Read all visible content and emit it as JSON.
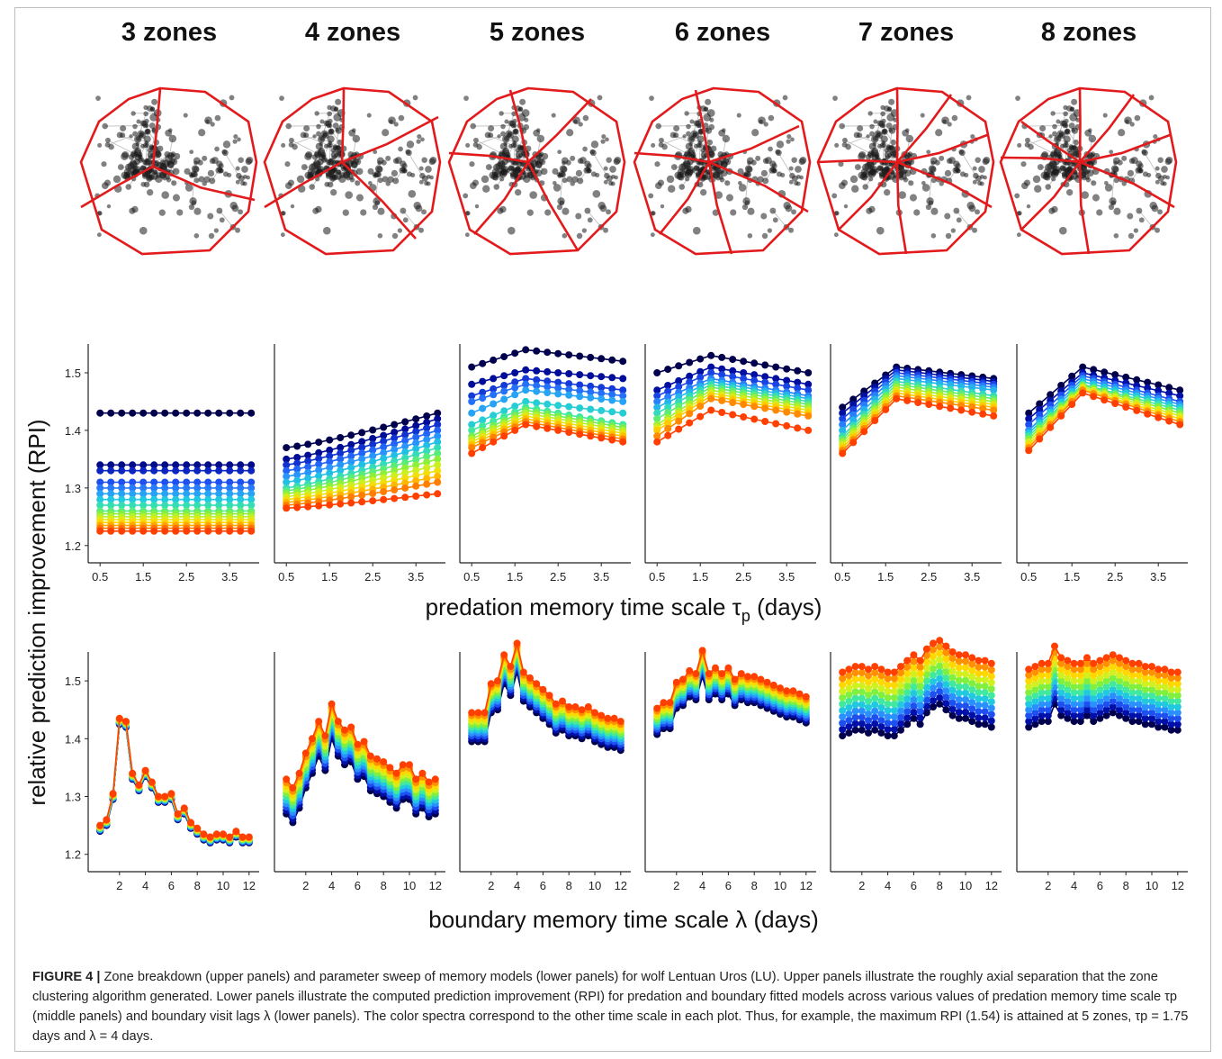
{
  "zone_titles": [
    "3 zones",
    "4 zones",
    "5 zones",
    "6 zones",
    "7 zones",
    "8 zones"
  ],
  "y_axis_label": "relative prediction improvement (RPI)",
  "middle_xlabel": "predation memory time scale τ",
  "middle_xlabel_sub": "p",
  "middle_xlabel_suffix": " (days)",
  "bottom_xlabel": "boundary memory time scale λ (days)",
  "caption": {
    "label": "FIGURE 4 |",
    "text": " Zone breakdown (upper panels) and parameter sweep of memory models (lower panels) for wolf Lentuan Uros (LU). Upper panels illustrate the roughly axial separation that the zone clustering algorithm generated. Lower panels illustrate the computed prediction improvement (RPI) for predation and boundary fitted models across various values of predation memory time scale τp (middle panels) and boundary visit lags λ (lower panels). The color spectra correspond to the other time scale in each plot. Thus, for example, the maximum RPI (1.54) is attained at 5 zones, τp = 1.75 days and λ = 4 days."
  },
  "colors": {
    "zone_boundary": "#e31a1c",
    "points": "#1a1a1a",
    "spectrum": [
      "#00004d",
      "#0010a8",
      "#1e50f0",
      "#2b90ff",
      "#20c8e0",
      "#40e8a0",
      "#80f040",
      "#d0f020",
      "#ffd800",
      "#ff9000",
      "#ff4000"
    ]
  },
  "chart_data": [
    {
      "type": "line",
      "panel": "middle",
      "zones": 3,
      "x": [
        0.5,
        0.75,
        1.0,
        1.25,
        1.5,
        1.75,
        2.0,
        2.25,
        2.5,
        2.75,
        3.0,
        3.25,
        3.5,
        3.75,
        4.0
      ],
      "xticks": [
        0.5,
        1.5,
        2.5,
        3.5
      ],
      "ylim": [
        1.17,
        1.55
      ],
      "yticks": [
        1.2,
        1.3,
        1.4,
        1.5
      ],
      "series_levels": [
        1.43,
        1.34,
        1.33,
        1.31,
        1.3,
        1.29,
        1.28,
        1.27,
        1.26,
        1.255,
        1.25,
        1.245,
        1.24,
        1.235,
        1.23,
        1.225
      ],
      "shape": "flat"
    },
    {
      "type": "line",
      "panel": "middle",
      "zones": 4,
      "x": [
        0.5,
        0.75,
        1.0,
        1.25,
        1.5,
        1.75,
        2.0,
        2.25,
        2.5,
        2.75,
        3.0,
        3.25,
        3.5,
        3.75,
        4.0
      ],
      "xticks": [
        0.5,
        1.5,
        2.5,
        3.5
      ],
      "ylim": [
        1.17,
        1.55
      ],
      "series_start": [
        1.37,
        1.35,
        1.34,
        1.33,
        1.32,
        1.31,
        1.3,
        1.295,
        1.29,
        1.285,
        1.28,
        1.275,
        1.27,
        1.265
      ],
      "series_end": [
        1.43,
        1.42,
        1.41,
        1.4,
        1.39,
        1.38,
        1.37,
        1.36,
        1.35,
        1.34,
        1.33,
        1.32,
        1.31,
        1.29
      ],
      "shape": "rising"
    },
    {
      "type": "line",
      "panel": "middle",
      "zones": 5,
      "x": [
        0.5,
        0.75,
        1.0,
        1.25,
        1.5,
        1.75,
        2.0,
        2.25,
        2.5,
        2.75,
        3.0,
        3.25,
        3.5,
        3.75,
        4.0
      ],
      "xticks": [
        0.5,
        1.5,
        2.5,
        3.5
      ],
      "ylim": [
        1.17,
        1.55
      ],
      "series_start": [
        1.51,
        1.48,
        1.46,
        1.45,
        1.43,
        1.41,
        1.4,
        1.39,
        1.385,
        1.38,
        1.375,
        1.37,
        1.36
      ],
      "series_peak": [
        1.54,
        1.505,
        1.49,
        1.48,
        1.47,
        1.45,
        1.44,
        1.435,
        1.43,
        1.425,
        1.42,
        1.415,
        1.41
      ],
      "series_end": [
        1.52,
        1.49,
        1.47,
        1.46,
        1.45,
        1.43,
        1.41,
        1.405,
        1.4,
        1.395,
        1.39,
        1.385,
        1.38
      ],
      "shape": "hump"
    },
    {
      "type": "line",
      "panel": "middle",
      "zones": 6,
      "x": [
        0.5,
        0.75,
        1.0,
        1.25,
        1.5,
        1.75,
        2.0,
        2.25,
        2.5,
        2.75,
        3.0,
        3.25,
        3.5,
        3.75,
        4.0
      ],
      "xticks": [
        0.5,
        1.5,
        2.5,
        3.5
      ],
      "ylim": [
        1.17,
        1.55
      ],
      "series_start": [
        1.5,
        1.47,
        1.46,
        1.45,
        1.44,
        1.43,
        1.42,
        1.41,
        1.405,
        1.4,
        1.39,
        1.38
      ],
      "series_peak": [
        1.53,
        1.51,
        1.5,
        1.49,
        1.485,
        1.48,
        1.475,
        1.47,
        1.465,
        1.46,
        1.455,
        1.435
      ],
      "series_end": [
        1.5,
        1.48,
        1.47,
        1.46,
        1.455,
        1.45,
        1.445,
        1.44,
        1.435,
        1.43,
        1.425,
        1.4
      ],
      "shape": "hump"
    },
    {
      "type": "line",
      "panel": "middle",
      "zones": 7,
      "x": [
        0.5,
        0.75,
        1.0,
        1.25,
        1.5,
        1.75,
        2.0,
        2.25,
        2.5,
        2.75,
        3.0,
        3.25,
        3.5,
        3.75,
        4.0
      ],
      "xticks": [
        0.5,
        1.5,
        2.5,
        3.5
      ],
      "ylim": [
        1.17,
        1.55
      ],
      "series_start": [
        1.44,
        1.43,
        1.42,
        1.41,
        1.4,
        1.39,
        1.385,
        1.38,
        1.375,
        1.37,
        1.365,
        1.36
      ],
      "series_peak": [
        1.51,
        1.505,
        1.5,
        1.495,
        1.49,
        1.485,
        1.48,
        1.475,
        1.47,
        1.465,
        1.46,
        1.455
      ],
      "series_end": [
        1.49,
        1.485,
        1.48,
        1.475,
        1.47,
        1.46,
        1.455,
        1.45,
        1.445,
        1.44,
        1.435,
        1.425
      ],
      "shape": "hump"
    },
    {
      "type": "line",
      "panel": "middle",
      "zones": 8,
      "x": [
        0.5,
        0.75,
        1.0,
        1.25,
        1.5,
        1.75,
        2.0,
        2.25,
        2.5,
        2.75,
        3.0,
        3.25,
        3.5,
        3.75,
        4.0
      ],
      "xticks": [
        0.5,
        1.5,
        2.5,
        3.5
      ],
      "ylim": [
        1.17,
        1.55
      ],
      "series_start": [
        1.43,
        1.42,
        1.41,
        1.4,
        1.395,
        1.39,
        1.385,
        1.38,
        1.375,
        1.37,
        1.365
      ],
      "series_peak": [
        1.51,
        1.5,
        1.495,
        1.49,
        1.485,
        1.48,
        1.478,
        1.475,
        1.472,
        1.47,
        1.465
      ],
      "series_end": [
        1.47,
        1.46,
        1.45,
        1.445,
        1.44,
        1.435,
        1.43,
        1.425,
        1.42,
        1.415,
        1.41
      ],
      "shape": "hump"
    },
    {
      "type": "line",
      "panel": "bottom",
      "zones": 3,
      "x": [
        0.5,
        1,
        1.5,
        2,
        2.5,
        3,
        3.5,
        4,
        4.5,
        5,
        5.5,
        6,
        6.5,
        7,
        7.5,
        8,
        8.5,
        9,
        9.5,
        10,
        10.5,
        11,
        11.5,
        12
      ],
      "xticks": [
        2,
        4,
        6,
        8,
        10,
        12
      ],
      "ylim": [
        1.17,
        1.55
      ],
      "base": [
        1.245,
        1.255,
        1.3,
        1.43,
        1.425,
        1.335,
        1.315,
        1.34,
        1.32,
        1.295,
        1.295,
        1.3,
        1.265,
        1.275,
        1.25,
        1.24,
        1.23,
        1.225,
        1.23,
        1.23,
        1.225,
        1.235,
        1.225,
        1.225
      ],
      "spread": 0.01
    },
    {
      "type": "line",
      "panel": "bottom",
      "zones": 4,
      "x": [
        0.5,
        1,
        1.5,
        2,
        2.5,
        3,
        3.5,
        4,
        4.5,
        5,
        5.5,
        6,
        6.5,
        7,
        7.5,
        8,
        8.5,
        9,
        9.5,
        10,
        10.5,
        11,
        11.5,
        12
      ],
      "xticks": [
        2,
        4,
        6,
        8,
        10,
        12
      ],
      "ylim": [
        1.17,
        1.55
      ],
      "base": [
        1.3,
        1.285,
        1.31,
        1.345,
        1.37,
        1.4,
        1.375,
        1.43,
        1.4,
        1.385,
        1.39,
        1.36,
        1.365,
        1.34,
        1.335,
        1.33,
        1.32,
        1.31,
        1.325,
        1.325,
        1.3,
        1.31,
        1.295,
        1.3
      ],
      "spread": 0.06
    },
    {
      "type": "line",
      "panel": "bottom",
      "zones": 5,
      "x": [
        0.5,
        1,
        1.5,
        2,
        2.5,
        3,
        3.5,
        4,
        4.5,
        5,
        5.5,
        6,
        6.5,
        7,
        7.5,
        8,
        8.5,
        9,
        9.5,
        10,
        10.5,
        11,
        11.5,
        12
      ],
      "xticks": [
        2,
        4,
        6,
        8,
        10,
        12
      ],
      "ylim": [
        1.17,
        1.55
      ],
      "base": [
        1.42,
        1.42,
        1.42,
        1.47,
        1.475,
        1.52,
        1.5,
        1.54,
        1.49,
        1.48,
        1.47,
        1.46,
        1.45,
        1.435,
        1.44,
        1.43,
        1.43,
        1.425,
        1.43,
        1.42,
        1.415,
        1.41,
        1.41,
        1.405
      ],
      "spread": 0.05
    },
    {
      "type": "line",
      "panel": "bottom",
      "zones": 6,
      "x": [
        0.5,
        1,
        1.5,
        2,
        2.5,
        3,
        3.5,
        4,
        4.5,
        5,
        5.5,
        6,
        6.5,
        7,
        7.5,
        8,
        8.5,
        9,
        9.5,
        10,
        10.5,
        11,
        11.5,
        12
      ],
      "xticks": [
        2,
        4,
        6,
        8,
        10,
        12
      ],
      "ylim": [
        1.17,
        1.55
      ],
      "base": [
        1.43,
        1.44,
        1.44,
        1.475,
        1.48,
        1.495,
        1.49,
        1.53,
        1.49,
        1.5,
        1.49,
        1.5,
        1.48,
        1.49,
        1.485,
        1.485,
        1.48,
        1.475,
        1.47,
        1.465,
        1.46,
        1.46,
        1.455,
        1.45
      ],
      "spread": 0.045
    },
    {
      "type": "line",
      "panel": "bottom",
      "zones": 7,
      "x": [
        0.5,
        1,
        1.5,
        2,
        2.5,
        3,
        3.5,
        4,
        4.5,
        5,
        5.5,
        6,
        6.5,
        7,
        7.5,
        8,
        8.5,
        9,
        9.5,
        10,
        10.5,
        11,
        11.5,
        12
      ],
      "xticks": [
        2,
        4,
        6,
        8,
        10,
        12
      ],
      "ylim": [
        1.17,
        1.55
      ],
      "base": [
        1.46,
        1.465,
        1.47,
        1.47,
        1.465,
        1.47,
        1.465,
        1.46,
        1.46,
        1.47,
        1.48,
        1.49,
        1.48,
        1.5,
        1.51,
        1.515,
        1.505,
        1.495,
        1.49,
        1.49,
        1.485,
        1.48,
        1.48,
        1.475
      ],
      "spread": 0.11
    },
    {
      "type": "line",
      "panel": "bottom",
      "zones": 8,
      "x": [
        0.5,
        1,
        1.5,
        2,
        2.5,
        3,
        3.5,
        4,
        4.5,
        5,
        5.5,
        6,
        6.5,
        7,
        7.5,
        8,
        8.5,
        9,
        9.5,
        10,
        10.5,
        11,
        11.5,
        12
      ],
      "xticks": [
        2,
        4,
        6,
        8,
        10,
        12
      ],
      "ylim": [
        1.17,
        1.55
      ],
      "base": [
        1.47,
        1.475,
        1.48,
        1.48,
        1.51,
        1.49,
        1.485,
        1.48,
        1.48,
        1.49,
        1.48,
        1.485,
        1.49,
        1.495,
        1.49,
        1.485,
        1.48,
        1.48,
        1.475,
        1.475,
        1.47,
        1.47,
        1.465,
        1.465
      ],
      "spread": 0.1
    }
  ]
}
